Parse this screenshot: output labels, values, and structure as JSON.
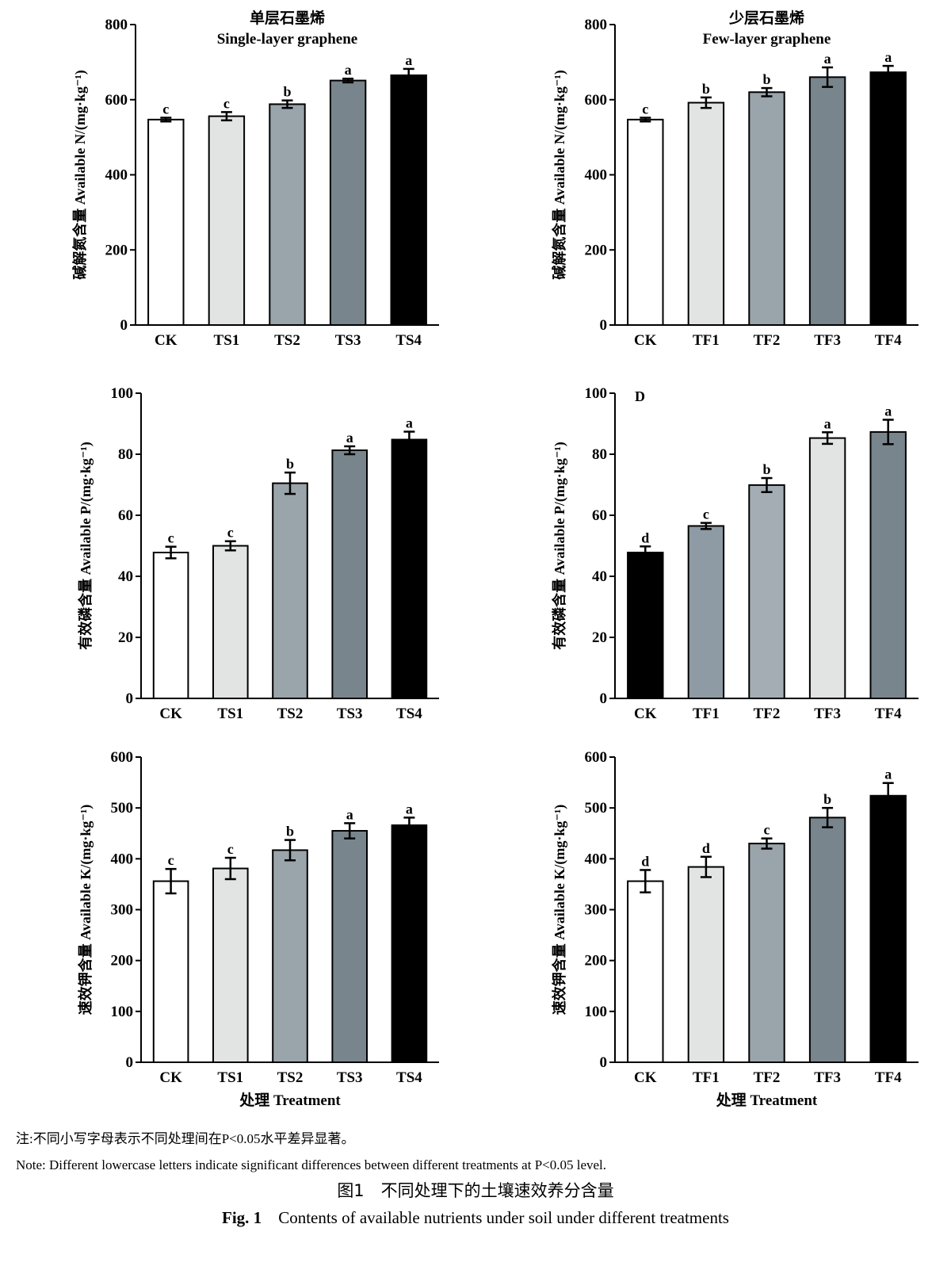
{
  "chart_data": [
    {
      "type": "bar",
      "title": "单层石墨烯",
      "subtitle": "Single-layer graphene",
      "ylabel": "碱解氮含量 Available N/(mg·kg⁻¹)",
      "xlabel": "",
      "categories": [
        "CK",
        "TS1",
        "TS2",
        "TS3",
        "TS4"
      ],
      "values": [
        547,
        556,
        588,
        651,
        665
      ],
      "errors": [
        5,
        11,
        10,
        5,
        17
      ],
      "letters": [
        "c",
        "c",
        "b",
        "a",
        "a"
      ],
      "colors": [
        "#ffffff",
        "#e2e4e3",
        "#9aa4ab",
        "#79858c",
        "#000000"
      ],
      "ylim": [
        0,
        800
      ],
      "yticks": [
        0,
        200,
        400,
        600,
        800
      ],
      "panel_label": "",
      "grid": false
    },
    {
      "type": "bar",
      "title": "少层石墨烯",
      "subtitle": "Few-layer graphene",
      "ylabel": "碱解氮含量 Available N/(mg·kg⁻¹)",
      "xlabel": "",
      "categories": [
        "CK",
        "TF1",
        "TF2",
        "TF3",
        "TF4"
      ],
      "values": [
        547,
        592,
        620,
        660,
        673
      ],
      "errors": [
        5,
        14,
        11,
        26,
        17
      ],
      "letters": [
        "c",
        "b",
        "b",
        "a",
        "a"
      ],
      "colors": [
        "#ffffff",
        "#e2e4e3",
        "#9aa4ab",
        "#79858c",
        "#000000"
      ],
      "ylim": [
        0,
        800
      ],
      "yticks": [
        0,
        200,
        400,
        600,
        800
      ],
      "panel_label": "",
      "grid": false
    },
    {
      "type": "bar",
      "title": "",
      "subtitle": "",
      "ylabel": "有效磷含量 Available P/(mg·kg⁻¹)",
      "xlabel": "",
      "categories": [
        "CK",
        "TS1",
        "TS2",
        "TS3",
        "TS4"
      ],
      "values": [
        47.8,
        50,
        70.5,
        81.3,
        84.8
      ],
      "errors": [
        1.9,
        1.5,
        3.5,
        1.3,
        2.6
      ],
      "letters": [
        "c",
        "c",
        "b",
        "a",
        "a"
      ],
      "colors": [
        "#ffffff",
        "#e2e4e3",
        "#9aa4ab",
        "#79858c",
        "#000000"
      ],
      "ylim": [
        0,
        100
      ],
      "yticks": [
        0,
        20,
        40,
        60,
        80,
        100
      ],
      "panel_label": "",
      "grid": false
    },
    {
      "type": "bar",
      "title": "",
      "subtitle": "",
      "ylabel": "有效磷含量 Available P/(mg·kg⁻¹)",
      "xlabel": "",
      "categories": [
        "CK",
        "TF1",
        "TF2",
        "TF3",
        "TF4"
      ],
      "values": [
        47.8,
        56.5,
        69.9,
        85.3,
        87.3
      ],
      "errors": [
        2.0,
        1.0,
        2.3,
        1.9,
        4.0
      ],
      "letters": [
        "d",
        "c",
        "b",
        "a",
        "a"
      ],
      "colors": [
        "#000000",
        "#8e9ba4",
        "#a4adb3",
        "#e2e4e3",
        "#79858c"
      ],
      "ylim": [
        0,
        100
      ],
      "yticks": [
        0,
        20,
        40,
        60,
        80,
        100
      ],
      "panel_label": "D",
      "grid": false
    },
    {
      "type": "bar",
      "title": "",
      "subtitle": "",
      "ylabel": "速效钾含量 Available K/(mg·kg⁻¹)",
      "xlabel": "处理 Treatment",
      "categories": [
        "CK",
        "TS1",
        "TS2",
        "TS3",
        "TS4"
      ],
      "values": [
        356,
        381,
        417,
        455,
        466
      ],
      "errors": [
        24,
        21,
        20,
        15,
        15
      ],
      "letters": [
        "c",
        "c",
        "b",
        "a",
        "a"
      ],
      "colors": [
        "#ffffff",
        "#e2e4e3",
        "#9aa4ab",
        "#79858c",
        "#000000"
      ],
      "ylim": [
        0,
        600
      ],
      "yticks": [
        0,
        100,
        200,
        300,
        400,
        500,
        600
      ],
      "panel_label": "",
      "grid": false
    },
    {
      "type": "bar",
      "title": "",
      "subtitle": "",
      "ylabel": "速效钾含量 Available K/(mg·kg⁻¹)",
      "xlabel": "处理 Treatment",
      "categories": [
        "CK",
        "TF1",
        "TF2",
        "TF3",
        "TF4"
      ],
      "values": [
        356,
        384,
        430,
        481,
        524
      ],
      "errors": [
        22,
        20,
        10,
        19,
        25
      ],
      "letters": [
        "d",
        "d",
        "c",
        "b",
        "a"
      ],
      "colors": [
        "#ffffff",
        "#e2e4e3",
        "#9aa4ab",
        "#79858c",
        "#000000"
      ],
      "ylim": [
        0,
        600
      ],
      "yticks": [
        0,
        100,
        200,
        300,
        400,
        500,
        600
      ],
      "panel_label": "",
      "grid": false
    }
  ],
  "notes": {
    "zh": "注:不同小写字母表示不同处理间在P<0.05水平差异显著。",
    "en": "Note: Different lowercase letters indicate significant differences between different treatments at P<0.05 level."
  },
  "caption": {
    "zh": "图1　不同处理下的土壤速效养分含量",
    "en_label": "Fig. 1",
    "en": "Contents of available nutrients under soil under different treatments"
  }
}
